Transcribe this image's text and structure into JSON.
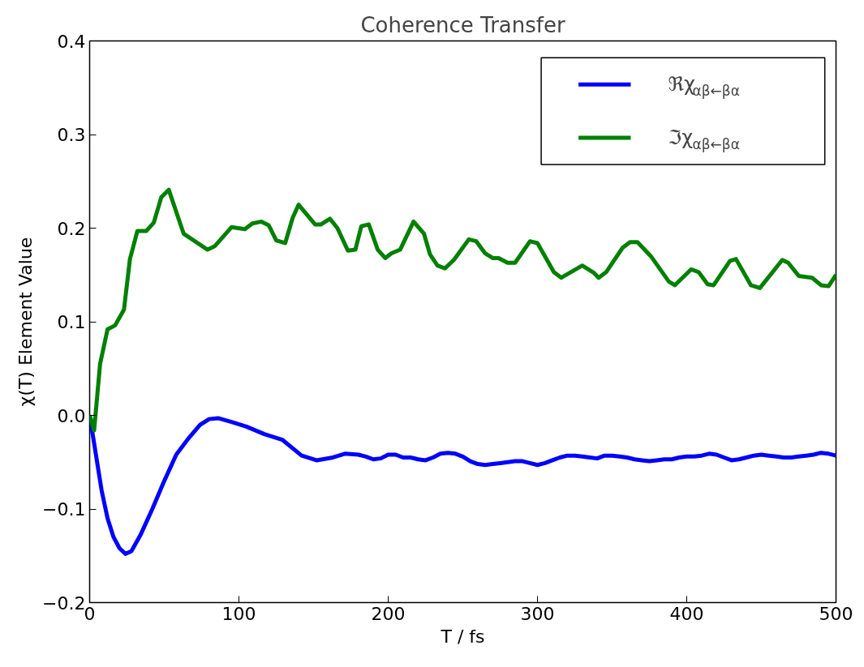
{
  "chart_data": {
    "type": "line",
    "title": "Coherence Transfer",
    "xlabel": "T / fs",
    "ylabel": "χ(T) Element Value",
    "xlim": [
      0,
      500
    ],
    "xticks": [
      0,
      100,
      200,
      300,
      400,
      500
    ],
    "ylim": [
      -0.2,
      0.4
    ],
    "yticks": [
      {
        "value": -0.2,
        "label": "−0.2"
      },
      {
        "value": -0.1,
        "label": "−0.1"
      },
      {
        "value": 0,
        "label": "0.0"
      },
      0.1,
      0.2,
      0.3,
      0.4
    ],
    "legend": "top right",
    "grid": false,
    "line_style": "solid",
    "marker": "none",
    "series": [
      {
        "name": "ℜχ$_{αβ←βα}$",
        "color": "#0000ff",
        "x": [
          0,
          4,
          8,
          12,
          16,
          20,
          24,
          28,
          34,
          42,
          50,
          58,
          66,
          74,
          80,
          86,
          95,
          105,
          117,
          129,
          142,
          152,
          163,
          171,
          180,
          185,
          190,
          195,
          200,
          205,
          210,
          215,
          220,
          225,
          230,
          235,
          240,
          245,
          250,
          255,
          260,
          265,
          270,
          275,
          280,
          285,
          290,
          295,
          300,
          305,
          310,
          315,
          320,
          325,
          330,
          335,
          340,
          345,
          350,
          355,
          360,
          365,
          370,
          375,
          380,
          385,
          390,
          395,
          400,
          405,
          410,
          415,
          420,
          425,
          430,
          435,
          440,
          445,
          450,
          455,
          460,
          465,
          470,
          475,
          480,
          485,
          490,
          495,
          500
        ],
        "values": [
          0.0,
          -0.04,
          -0.08,
          -0.11,
          -0.13,
          -0.142,
          -0.148,
          -0.145,
          -0.128,
          -0.1,
          -0.07,
          -0.042,
          -0.025,
          -0.01,
          -0.004,
          -0.003,
          -0.007,
          -0.012,
          -0.02,
          -0.026,
          -0.043,
          -0.048,
          -0.045,
          -0.041,
          -0.042,
          -0.044,
          -0.047,
          -0.046,
          -0.042,
          -0.042,
          -0.045,
          -0.045,
          -0.047,
          -0.048,
          -0.045,
          -0.041,
          -0.04,
          -0.041,
          -0.044,
          -0.049,
          -0.052,
          -0.053,
          -0.052,
          -0.051,
          -0.05,
          -0.049,
          -0.049,
          -0.051,
          -0.053,
          -0.051,
          -0.048,
          -0.045,
          -0.043,
          -0.043,
          -0.044,
          -0.045,
          -0.046,
          -0.043,
          -0.043,
          -0.044,
          -0.045,
          -0.047,
          -0.048,
          -0.049,
          -0.048,
          -0.047,
          -0.047,
          -0.045,
          -0.044,
          -0.044,
          -0.043,
          -0.041,
          -0.042,
          -0.045,
          -0.048,
          -0.047,
          -0.045,
          -0.043,
          -0.042,
          -0.043,
          -0.044,
          -0.045,
          -0.045,
          -0.044,
          -0.043,
          -0.042,
          -0.04,
          -0.041,
          -0.043
        ]
      },
      {
        "name": "ℑχ$_{αβ←βα}$",
        "color": "#008000",
        "x": [
          0,
          3,
          7,
          12,
          17,
          23,
          27,
          32,
          38,
          43,
          48,
          53,
          63,
          79,
          84,
          95,
          104,
          109,
          115,
          120,
          125,
          131,
          136,
          140,
          151,
          155,
          161,
          166,
          173,
          178,
          182,
          187,
          193,
          198,
          202,
          208,
          217,
          224,
          228,
          233,
          238,
          244,
          254,
          259,
          265,
          270,
          274,
          280,
          285,
          295,
          300,
          311,
          316,
          330,
          338,
          341,
          346,
          357,
          362,
          367,
          376,
          388,
          392,
          403,
          408,
          414,
          418,
          429,
          433,
          443,
          449,
          464,
          468,
          475,
          484,
          490,
          495,
          500
        ],
        "values": [
          0.0,
          -0.016,
          0.055,
          0.092,
          0.096,
          0.113,
          0.167,
          0.197,
          0.197,
          0.206,
          0.233,
          0.241,
          0.194,
          0.177,
          0.181,
          0.201,
          0.199,
          0.205,
          0.207,
          0.203,
          0.187,
          0.184,
          0.211,
          0.225,
          0.204,
          0.204,
          0.21,
          0.2,
          0.176,
          0.177,
          0.202,
          0.204,
          0.177,
          0.168,
          0.173,
          0.177,
          0.207,
          0.194,
          0.172,
          0.16,
          0.157,
          0.166,
          0.188,
          0.186,
          0.173,
          0.168,
          0.168,
          0.163,
          0.163,
          0.186,
          0.184,
          0.153,
          0.147,
          0.16,
          0.152,
          0.147,
          0.153,
          0.179,
          0.185,
          0.185,
          0.17,
          0.143,
          0.139,
          0.156,
          0.153,
          0.14,
          0.139,
          0.165,
          0.167,
          0.139,
          0.136,
          0.166,
          0.163,
          0.149,
          0.147,
          0.139,
          0.138,
          0.15
        ]
      }
    ]
  }
}
